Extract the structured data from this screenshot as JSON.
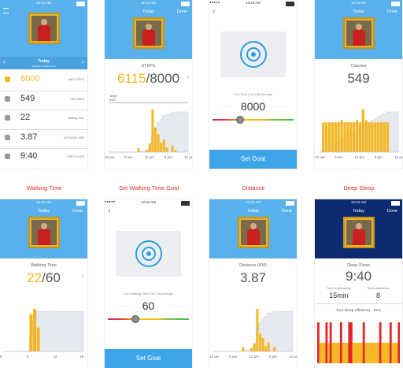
{
  "captions": [
    "Walking Time",
    "Set Walking Time Goal",
    "Distance",
    "Deep Sleep"
  ],
  "screens": [
    {
      "kind": "summary",
      "status_time": "12:24 AM",
      "nav_title": "Today",
      "nav_date": "SUNDAY, AUGUST 24",
      "rows": [
        {
          "value": "8000",
          "label": "MAX STEPS"
        },
        {
          "value": "549",
          "label": "CALORIES"
        },
        {
          "value": "22",
          "label": "Walking Time"
        },
        {
          "value": "3.87",
          "label": "DISTANCE (KM)"
        },
        {
          "value": "9:40",
          "label": "DEEP SLEEP"
        }
      ]
    },
    {
      "kind": "detail",
      "status_time": "12:24 AM",
      "title": "Today",
      "action": "Done",
      "metric": "STEPS",
      "value": "6115",
      "goal": "/8000",
      "accent": true,
      "target_label": "Target",
      "target_value": "8000",
      "chart": {
        "bar_color": "#f5b824",
        "bars": [
          0,
          0,
          0,
          0,
          0,
          0,
          0,
          0,
          0,
          0,
          8,
          0,
          0,
          5,
          18,
          90,
          52,
          38,
          20,
          26,
          10,
          0,
          14,
          4,
          0,
          0,
          0,
          0
        ],
        "xticks": [
          "12 am",
          "6 am",
          "12 pm",
          "6 pm",
          "12 am"
        ]
      }
    },
    {
      "kind": "goal",
      "status_time": "12:24 AM",
      "caption": "Your Step Goal | My Average",
      "value": "8000",
      "button": "Set Goal"
    },
    {
      "kind": "detail",
      "status_time": "12:24 AM",
      "title": "Today",
      "action": "Done",
      "metric": "Calories",
      "value": "549",
      "goal": "",
      "accent": false,
      "chart": {
        "bar_color": "#f5b824",
        "bars": [
          0,
          28,
          28,
          28,
          28,
          28,
          28,
          30,
          28,
          28,
          28,
          28,
          30,
          28,
          40,
          30,
          28,
          28,
          28,
          28,
          28,
          28,
          28,
          0,
          0,
          0
        ],
        "xticks": [
          "12 am",
          "6 am",
          "12 pm",
          "6 pm",
          "12 am"
        ]
      }
    },
    {
      "kind": "detail",
      "status_time": "12:24 AM",
      "title": "Today",
      "action": "Done",
      "metric": "Walking Time",
      "value": "22",
      "goal": "/60",
      "accent": true,
      "chart": {
        "bar_color": "#f5b824",
        "bars": [
          0,
          0,
          0,
          0,
          0,
          0,
          0,
          70,
          80,
          45,
          0,
          0,
          0,
          0,
          0,
          0,
          0,
          0,
          0,
          0,
          0,
          0
        ],
        "xticks": [
          "0",
          "6",
          "12",
          "18"
        ]
      }
    },
    {
      "kind": "goal",
      "status_time": "12:24 AM",
      "caption": "Your Walking Time Goal | My Average",
      "value": "60",
      "button": "Set Goal"
    },
    {
      "kind": "detail",
      "status_time": "12:24 AM",
      "title": "Today",
      "action": "Done",
      "metric": "Distance (KM)",
      "value": "3.87",
      "goal": "",
      "accent": false,
      "chart": {
        "bar_color": "#f5b824",
        "bars": [
          0,
          0,
          0,
          0,
          0,
          0,
          0,
          0,
          0,
          0,
          10,
          0,
          0,
          8,
          18,
          95,
          40,
          30,
          12,
          20,
          0,
          10,
          0,
          0,
          0,
          0,
          0,
          0
        ],
        "xticks": [
          "12 am",
          "6 am",
          "12 pm",
          "6 pm",
          "12 am"
        ]
      }
    },
    {
      "kind": "sleep",
      "status_time": "12:24 AM",
      "title": "Today",
      "action": "Done",
      "metric": "Deep Sleep",
      "value": "9:40",
      "stats": [
        {
          "label": "Time to fall asleep",
          "value": "15min"
        },
        {
          "label": "Times awakened",
          "value": "8"
        }
      ],
      "efficiency": "Your sleep efficiency : 91%",
      "chart": {
        "bar_color": "#f5b824",
        "awake_color": "#e0262b",
        "bars": [
          1,
          0,
          0,
          0,
          1,
          0,
          1,
          0,
          0,
          0,
          0,
          1,
          0,
          0,
          0,
          1,
          1,
          0,
          0,
          0,
          0,
          0,
          1,
          0,
          0,
          0,
          0,
          0,
          0,
          0,
          1,
          0,
          0,
          0,
          0,
          1,
          0,
          0,
          0,
          1
        ]
      }
    }
  ]
}
